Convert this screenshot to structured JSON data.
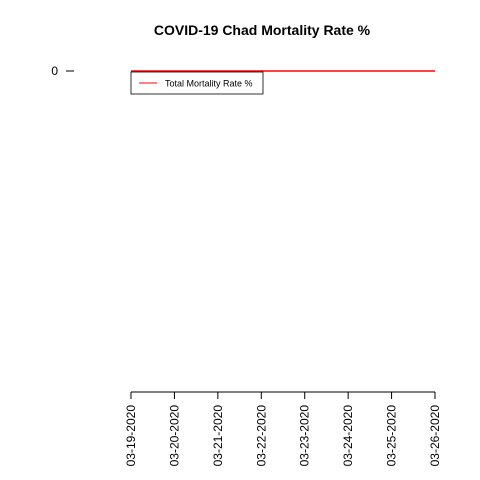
{
  "chart_data": {
    "type": "line",
    "title": "COVID-19 Chad Mortality Rate %",
    "categories": [
      "03-19-2020",
      "03-20-2020",
      "03-21-2020",
      "03-22-2020",
      "03-23-2020",
      "03-24-2020",
      "03-25-2020",
      "03-26-2020"
    ],
    "series": [
      {
        "name": "Total Mortality Rate %",
        "color": "#ff0000",
        "values": [
          0,
          0,
          0,
          0,
          0,
          0,
          0,
          0
        ]
      }
    ],
    "ylim": [
      -1,
      0
    ],
    "yticks": [
      0
    ],
    "legend": "top-left"
  }
}
